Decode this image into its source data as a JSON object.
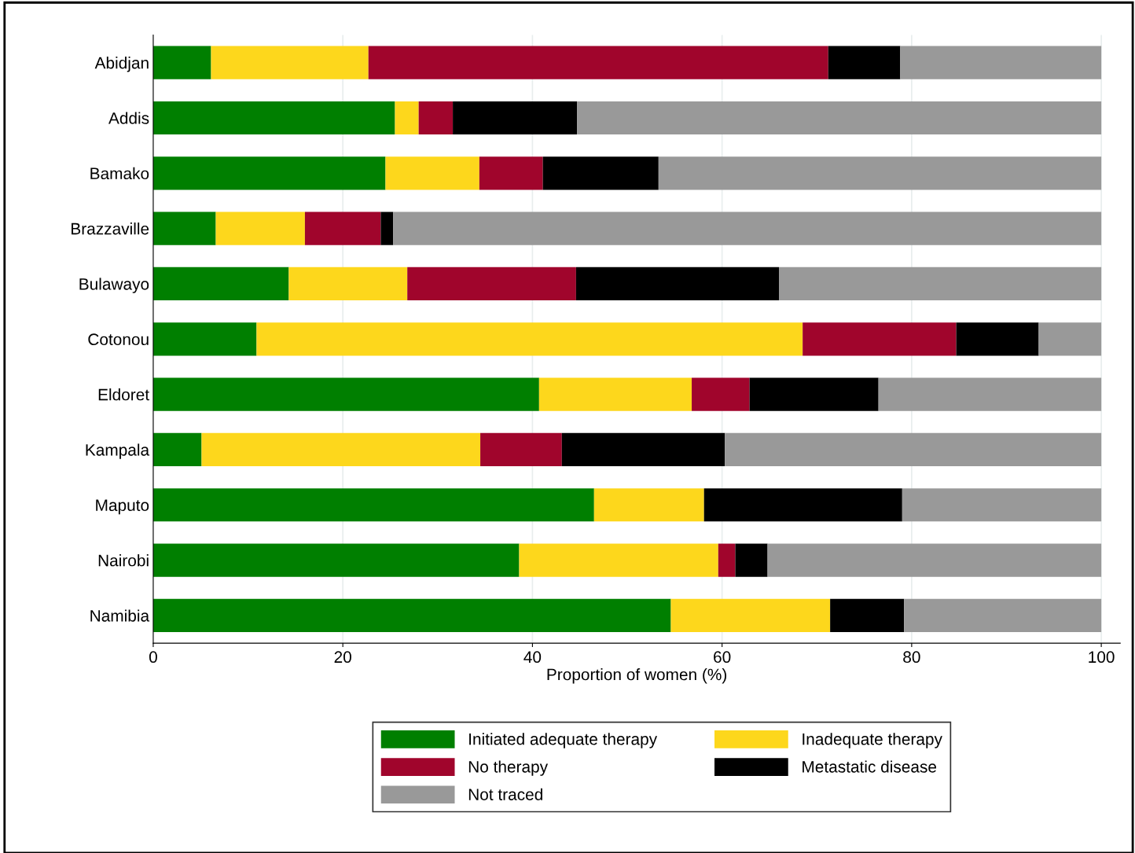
{
  "chart_data": {
    "type": "bar",
    "orientation": "horizontal",
    "stacked": true,
    "xlabel": "Proportion of women (%)",
    "categories": [
      "Abidjan",
      "Addis",
      "Bamako",
      "Brazzaville",
      "Bulawayo",
      "Cotonou",
      "Eldoret",
      "Kampala",
      "Maputo",
      "Nairobi",
      "Namibia"
    ],
    "series": [
      {
        "name": "Initiated adequate therapy",
        "color": "#007f00",
        "values": [
          6.1,
          25.5,
          24.5,
          6.6,
          14.3,
          10.9,
          40.7,
          5.1,
          46.5,
          38.6,
          54.6
        ]
      },
      {
        "name": "Inadequate therapy",
        "color": "#fdd71c",
        "values": [
          16.6,
          2.5,
          9.9,
          9.4,
          12.5,
          57.6,
          16.1,
          29.4,
          11.6,
          21.0,
          16.8
        ]
      },
      {
        "name": "No therapy",
        "color": "#a0052c",
        "values": [
          48.5,
          3.6,
          6.7,
          8.0,
          17.8,
          16.2,
          6.1,
          8.6,
          0,
          1.8,
          0
        ]
      },
      {
        "name": "Metastatic disease",
        "color": "#000000",
        "values": [
          7.6,
          13.1,
          12.2,
          1.3,
          21.4,
          8.7,
          13.6,
          17.2,
          20.9,
          3.4,
          7.8
        ]
      },
      {
        "name": "Not traced",
        "color": "#999999",
        "values": [
          21.2,
          55.3,
          46.7,
          74.7,
          34.0,
          6.6,
          23.5,
          39.7,
          21.0,
          35.2,
          20.8
        ]
      }
    ],
    "xlim": [
      0,
      102
    ],
    "xticks": [
      0,
      20,
      40,
      60,
      80,
      100
    ],
    "grid": "x",
    "legend": "bottom"
  }
}
